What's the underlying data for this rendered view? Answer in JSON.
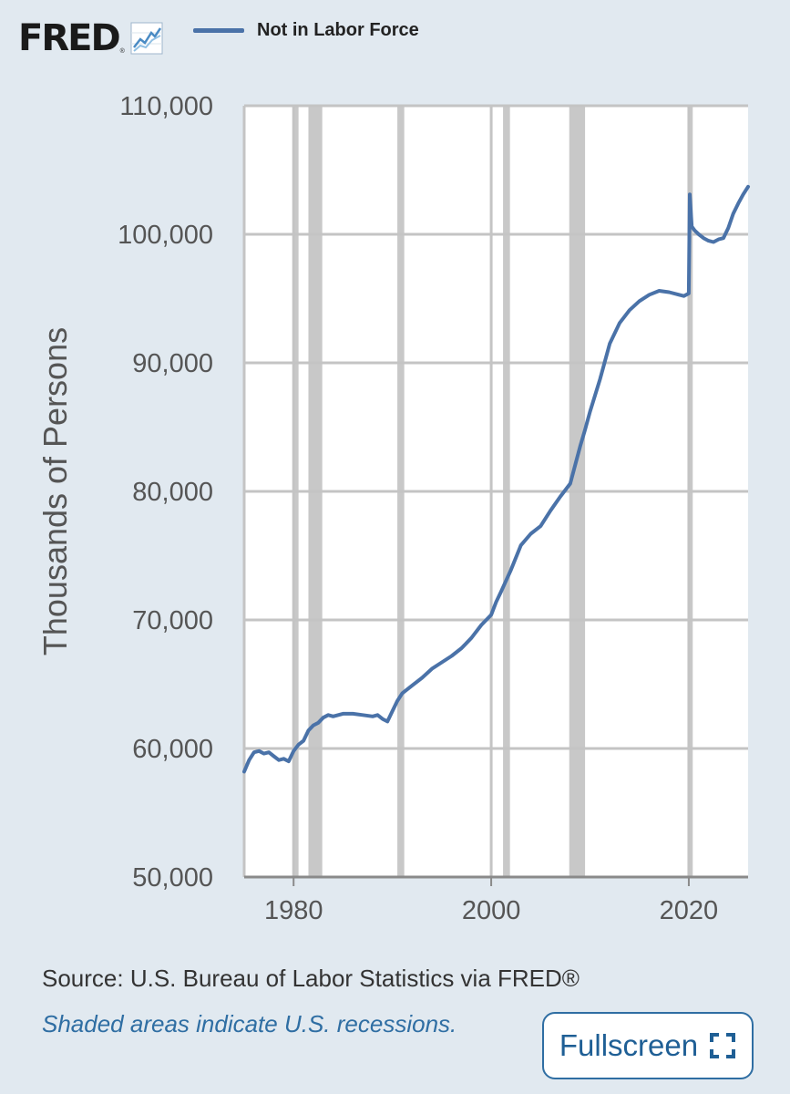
{
  "logo": {
    "text": "FRED",
    "reg": "®",
    "icon": "line-chart-icon"
  },
  "legend": {
    "label": "Not in Labor Force",
    "color": "#4a72a8"
  },
  "footer": {
    "source": "Source: U.S. Bureau of Labor Statistics via FRED®",
    "recession_note": "Shaded areas indicate U.S. recessions.",
    "fullscreen_label": "Fullscreen",
    "fullscreen_icon": "expand-corners-icon"
  },
  "colors": {
    "background": "#e1e9f0",
    "plot_background": "#ffffff",
    "grid": "#c4c4c4",
    "recession": "#c8c8c8",
    "series": "#4a72a8",
    "link": "#2f6ea3"
  },
  "chart_data": {
    "type": "line",
    "title": "",
    "xlabel": "",
    "ylabel": "Thousands of Persons",
    "xlim": [
      1975.0,
      2026.0
    ],
    "ylim": [
      50000,
      110000
    ],
    "x_ticks": [
      1980,
      2000,
      2020
    ],
    "x_tick_labels": [
      "1980",
      "2000",
      "2020"
    ],
    "y_ticks": [
      50000,
      60000,
      70000,
      80000,
      90000,
      100000,
      110000
    ],
    "y_tick_labels": [
      "50,000",
      "60,000",
      "70,000",
      "80,000",
      "90,000",
      "100,000",
      "110,000"
    ],
    "grid": true,
    "legend_position": "top",
    "recessions": [
      [
        1980.0,
        1980.5
      ],
      [
        1981.5,
        1982.9
      ],
      [
        1990.5,
        1991.2
      ],
      [
        2001.2,
        2001.9
      ],
      [
        2007.9,
        2009.5
      ],
      [
        2020.1,
        2020.4
      ]
    ],
    "series": [
      {
        "name": "Not in Labor Force",
        "x": [
          1975.0,
          1975.5,
          1976.0,
          1976.5,
          1977.0,
          1977.5,
          1978.0,
          1978.5,
          1979.0,
          1979.5,
          1980.0,
          1980.5,
          1981.0,
          1981.5,
          1982.0,
          1982.5,
          1983.0,
          1983.5,
          1984.0,
          1985.0,
          1986.0,
          1987.0,
          1988.0,
          1988.5,
          1989.0,
          1989.5,
          1990.0,
          1990.5,
          1991.0,
          1992.0,
          1993.0,
          1994.0,
          1995.0,
          1996.0,
          1997.0,
          1998.0,
          1999.0,
          2000.0,
          2000.5,
          2001.0,
          2002.0,
          2003.0,
          2004.0,
          2005.0,
          2006.0,
          2007.0,
          2008.0,
          2009.0,
          2009.5,
          2010.0,
          2011.0,
          2012.0,
          2013.0,
          2014.0,
          2015.0,
          2016.0,
          2017.0,
          2018.0,
          2019.0,
          2019.5,
          2020.0,
          2020.1,
          2020.3,
          2020.6,
          2021.0,
          2021.5,
          2022.0,
          2022.5,
          2023.0,
          2023.5,
          2024.0,
          2024.5,
          2025.0,
          2025.5,
          2026.0
        ],
        "y": [
          58200,
          59100,
          59700,
          59800,
          59600,
          59700,
          59400,
          59100,
          59200,
          59000,
          59800,
          60300,
          60600,
          61400,
          61800,
          62000,
          62400,
          62600,
          62500,
          62700,
          62700,
          62600,
          62500,
          62600,
          62300,
          62100,
          62900,
          63700,
          64300,
          64900,
          65500,
          66200,
          66700,
          67200,
          67800,
          68600,
          69600,
          70400,
          71400,
          72200,
          73900,
          75800,
          76700,
          77300,
          78500,
          79600,
          80600,
          83500,
          84800,
          86200,
          88700,
          91500,
          93100,
          94100,
          94800,
          95300,
          95600,
          95500,
          95300,
          95200,
          95400,
          103100,
          100600,
          100300,
          100000,
          99700,
          99500,
          99400,
          99600,
          99700,
          100500,
          101600,
          102400,
          103100,
          103700
        ]
      }
    ]
  }
}
